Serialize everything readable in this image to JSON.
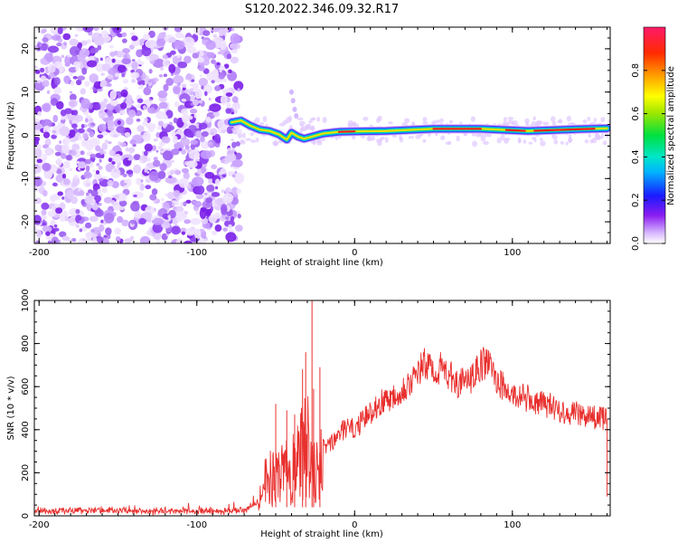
{
  "title": "S120.2022.346.09.32.R17",
  "chart_data": [
    {
      "type": "heatmap",
      "name": "spectrogram",
      "xlabel": "Height of straight line (km)",
      "ylabel": "Frequency (Hz)",
      "xlim": [
        -203,
        162
      ],
      "ylim": [
        -25,
        25
      ],
      "x_ticks": [
        -200,
        -100,
        0,
        100
      ],
      "x_tick_labels": [
        "-200",
        "-100",
        "0",
        "100"
      ],
      "y_ticks": [
        -20,
        -10,
        0,
        10,
        20
      ],
      "y_tick_labels": [
        "-20",
        "-10",
        "0",
        "10",
        "20"
      ],
      "noise_region_x": [
        -203,
        -73
      ],
      "signal_track": [
        {
          "x": -78,
          "y": 3.0
        },
        {
          "x": -72,
          "y": 3.4
        },
        {
          "x": -66,
          "y": 2.2
        },
        {
          "x": -60,
          "y": 1.3
        },
        {
          "x": -54,
          "y": 1.0
        },
        {
          "x": -48,
          "y": 0.2
        },
        {
          "x": -43,
          "y": -1.0
        },
        {
          "x": -40,
          "y": 0.6
        },
        {
          "x": -36,
          "y": -0.3
        },
        {
          "x": -32,
          "y": -0.8
        },
        {
          "x": -28,
          "y": -0.4
        },
        {
          "x": -20,
          "y": 0.4
        },
        {
          "x": -10,
          "y": 0.8
        },
        {
          "x": 0,
          "y": 0.9
        },
        {
          "x": 20,
          "y": 1.0
        },
        {
          "x": 50,
          "y": 1.5
        },
        {
          "x": 80,
          "y": 1.5
        },
        {
          "x": 110,
          "y": 1.0
        },
        {
          "x": 140,
          "y": 1.4
        },
        {
          "x": 160,
          "y": 1.6
        }
      ],
      "colorbar": {
        "label": "Normalized spectral amplitude",
        "range": [
          0,
          1
        ],
        "ticks": [
          0.0,
          0.2,
          0.4,
          0.6,
          0.8
        ],
        "tick_labels": [
          "0.0",
          "0.2",
          "0.4",
          "0.6",
          "0.8"
        ]
      }
    },
    {
      "type": "line",
      "name": "snr",
      "xlabel": "Height of straight line (km)",
      "ylabel": "SNR (10 * v/v)",
      "xlim": [
        -203,
        162
      ],
      "ylim": [
        0,
        1000
      ],
      "x_ticks": [
        -200,
        -100,
        0,
        100
      ],
      "x_tick_labels": [
        "-200",
        "-100",
        "0",
        "100"
      ],
      "y_ticks": [
        0,
        200,
        400,
        600,
        800,
        1000
      ],
      "y_tick_labels": [
        "0",
        "200",
        "400",
        "600",
        "800",
        "1000"
      ],
      "series": [
        {
          "name": "SNR",
          "color": "#e8302e",
          "x": [
            -203,
            -190,
            -175,
            -160,
            -145,
            -130,
            -115,
            -100,
            -85,
            -70,
            -62,
            -58,
            -54,
            -50,
            -46,
            -42,
            -38,
            -34,
            -31,
            -29,
            -27,
            -24,
            -20,
            -15,
            -10,
            -5,
            0,
            5,
            10,
            15,
            20,
            25,
            30,
            35,
            40,
            43,
            47,
            52,
            57,
            60,
            65,
            70,
            75,
            80,
            84,
            88,
            92,
            96,
            100,
            105,
            110,
            115,
            120,
            125,
            130,
            135,
            140,
            145,
            150,
            155,
            160
          ],
          "y": [
            20,
            22,
            25,
            22,
            24,
            21,
            23,
            22,
            22,
            25,
            60,
            190,
            250,
            230,
            260,
            290,
            320,
            380,
            560,
            460,
            330,
            300,
            320,
            330,
            380,
            410,
            400,
            440,
            480,
            520,
            540,
            560,
            590,
            620,
            650,
            705,
            690,
            680,
            685,
            650,
            620,
            615,
            640,
            700,
            715,
            660,
            620,
            575,
            560,
            555,
            545,
            520,
            520,
            510,
            490,
            480,
            475,
            470,
            460,
            455,
            450
          ]
        }
      ],
      "spikes": [
        {
          "x": -50,
          "y": 520
        },
        {
          "x": -43,
          "y": 490
        },
        {
          "x": -38,
          "y": 470
        },
        {
          "x": -33,
          "y": 680
        },
        {
          "x": -31,
          "y": 760
        },
        {
          "x": -27,
          "y": 1000
        },
        {
          "x": -26,
          "y": 590
        },
        {
          "x": -22,
          "y": 690
        }
      ]
    }
  ]
}
